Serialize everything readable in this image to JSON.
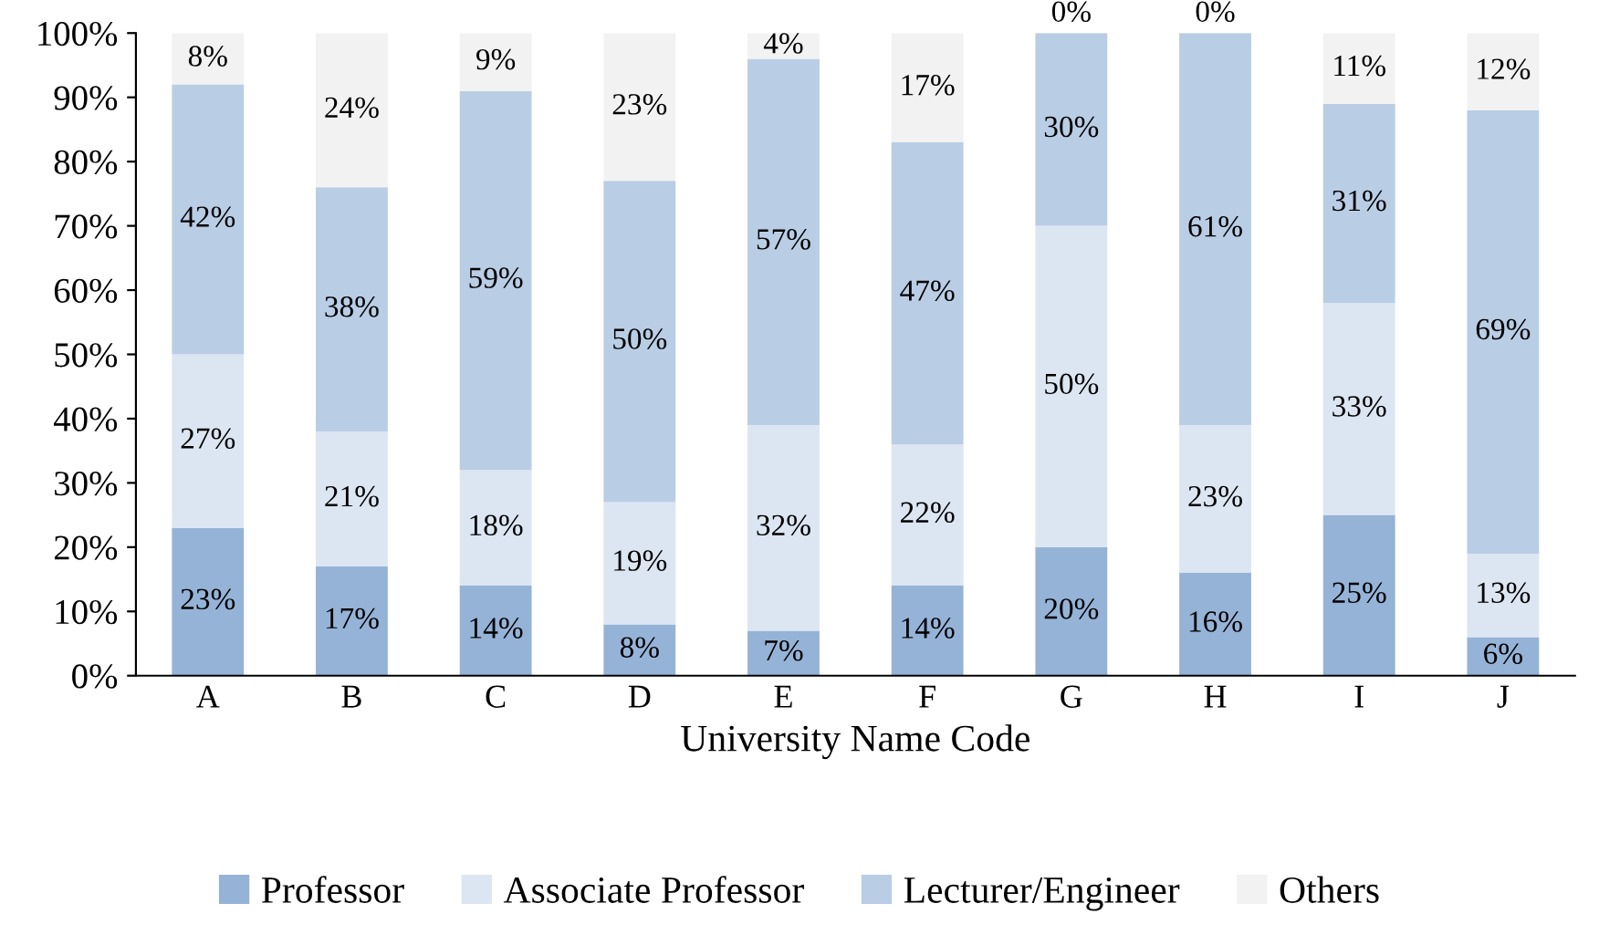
{
  "chart_data": {
    "type": "bar",
    "stacked": true,
    "xlabel": "University Name Code",
    "categories": [
      "A",
      "B",
      "C",
      "D",
      "E",
      "F",
      "G",
      "H",
      "I",
      "J"
    ],
    "series": [
      {
        "name": "Professor",
        "color": "#95b3d7",
        "values": [
          23,
          17,
          14,
          8,
          7,
          14,
          20,
          16,
          25,
          6
        ],
        "value_labels": [
          "23%",
          "17%",
          "14%",
          "8%",
          "7%",
          "14%",
          "20%",
          "16%",
          "25%",
          "6%"
        ]
      },
      {
        "name": "Associate Professor",
        "color": "#dce6f2",
        "values": [
          27,
          21,
          18,
          19,
          32,
          22,
          50,
          23,
          33,
          13
        ],
        "value_labels": [
          "27%",
          "21%",
          "18%",
          "19%",
          "32%",
          "22%",
          "50%",
          "23%",
          "33%",
          "13%"
        ]
      },
      {
        "name": "Lecturer/Engineer",
        "color": "#b9cde5",
        "values": [
          42,
          38,
          59,
          50,
          57,
          47,
          30,
          61,
          31,
          69
        ],
        "value_labels": [
          "42%",
          "38%",
          "59%",
          "50%",
          "57%",
          "47%",
          "30%",
          "61%",
          "31%",
          "69%"
        ]
      },
      {
        "name": "Others",
        "color": "#f2f2f2",
        "values": [
          8,
          24,
          9,
          23,
          4,
          17,
          0,
          0,
          11,
          12
        ],
        "value_labels": [
          "8%",
          "24%",
          "9%",
          "23%",
          "4%",
          "17%",
          "0%",
          "0%",
          "11%",
          "12%"
        ]
      }
    ],
    "ylim": [
      0,
      100
    ],
    "yticks": [
      {
        "value": 0,
        "label": "0%"
      },
      {
        "value": 10,
        "label": "10%"
      },
      {
        "value": 20,
        "label": "20%"
      },
      {
        "value": 30,
        "label": "30%"
      },
      {
        "value": 40,
        "label": "40%"
      },
      {
        "value": 50,
        "label": "50%"
      },
      {
        "value": 60,
        "label": "60%"
      },
      {
        "value": 70,
        "label": "70%"
      },
      {
        "value": 80,
        "label": "80%"
      },
      {
        "value": 90,
        "label": "90%"
      },
      {
        "value": 100,
        "label": "100%"
      }
    ],
    "grid": false,
    "legend": "bottom"
  }
}
